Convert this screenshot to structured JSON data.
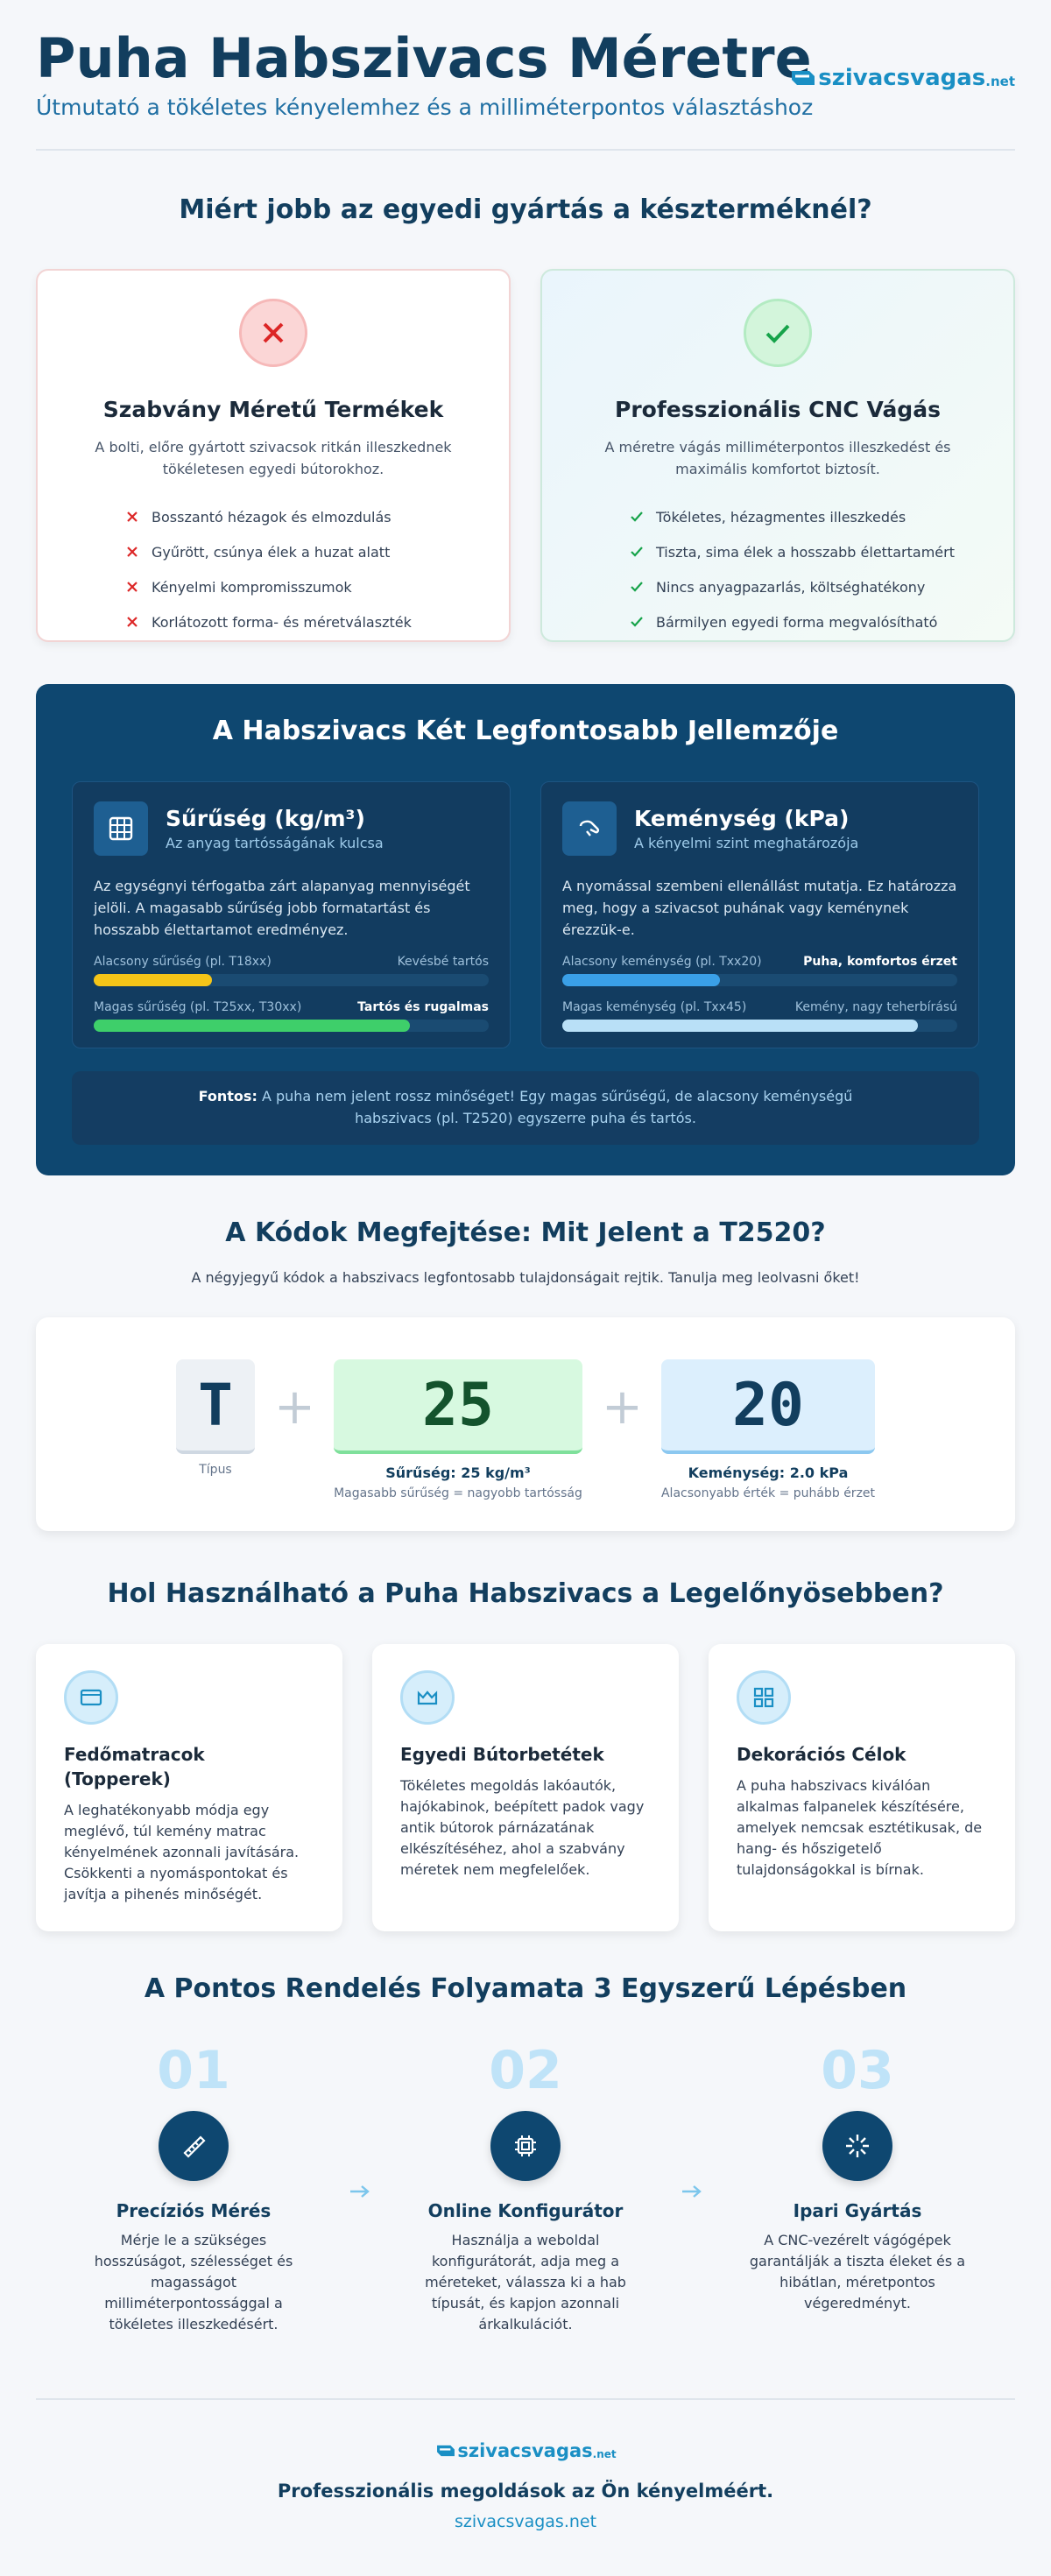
{
  "header": {
    "title": "Puha Habszivacs Méretre",
    "subtitle": "Útmutató a tökéletes kényelemhez és a milliméterpontos választáshoz",
    "logo": {
      "name": "szivacsvagas",
      "tld": ".net"
    }
  },
  "comparison": {
    "heading": "Miért jobb az egyedi gyártás a készterméknél?",
    "cards": [
      {
        "title": "Szabvány Méretű Termékek",
        "description": "A bolti, előre gyártott szivacsok ritkán illeszkednek tökéletesen egyedi bútorokhoz.",
        "items": [
          "Bosszantó hézagok és elmozdulás",
          "Gyűrött, csúnya élek a huzat alatt",
          "Kényelmi kompromisszumok",
          "Korlátozott forma- és méretválaszték"
        ]
      },
      {
        "title": "Professzionális CNC Vágás",
        "description": "A méretre vágás milliméterpontos illeszkedést és maximális komfortot biztosít.",
        "items": [
          "Tökéletes, hézagmentes illeszkedés",
          "Tiszta, sima élek a hosszabb élettartamért",
          "Nincs anyagpazarlás, költséghatékony",
          "Bármilyen egyedi forma megvalósítható"
        ]
      }
    ]
  },
  "features": {
    "heading": "A Habszivacs Két Legfontosabb Jellemzője",
    "cards": [
      {
        "title": "Sűrűség (kg/m³)",
        "subtitle": "Az anyag tartósságának kulcsa",
        "description": "Az egységnyi térfogatba zárt alapanyag mennyiségét jelöli. A magasabb sűrűség jobb formatartást és hosszabb élettartamot eredményez.",
        "bars": [
          {
            "label": "Alacsony sűrűség (pl. T18xx)",
            "result": "Kevésbé tartós"
          },
          {
            "label": "Magas sűrűség (pl. T25xx, T30xx)",
            "result": "Tartós és rugalmas"
          }
        ]
      },
      {
        "title": "Keménység (kPa)",
        "subtitle": "A kényelmi szint meghatározója",
        "description": "A nyomással szembeni ellenállást mutatja. Ez határozza meg, hogy a szivacsot puhának vagy keménynek érezzük-e.",
        "bars": [
          {
            "label": "Alacsony keménység (pl. Txx20)",
            "result": "Puha, komfortos érzet"
          },
          {
            "label": "Magas keménység (pl. Txx45)",
            "result": "Kemény, nagy teherbírású"
          }
        ]
      }
    ],
    "note": {
      "label": "Fontos:",
      "text": "A puha nem jelent rossz minőséget! Egy magas sűrűségű, de alacsony keménységű habszivacs (pl. T2520) egyszerre puha és tartós."
    }
  },
  "codes": {
    "heading": "A Kódok Megfejtése: Mit Jelent a T2520?",
    "subtitle": "A négyjegyű kódok a habszivacs legfontosabb tulajdonságait rejtik. Tanulja meg leolvasni őket!",
    "operator": "+",
    "type": {
      "code": "T",
      "caption": "Típus"
    },
    "density": {
      "code": "25",
      "title": "Sűrűség: 25 kg/m³",
      "caption": "Magasabb sűrűség = nagyobb tartósság"
    },
    "hardness": {
      "code": "20",
      "title": "Keménység: 2.0 kPa",
      "caption": "Alacsonyabb érték = puhább érzet"
    }
  },
  "uses": {
    "heading": "Hol Használható a Puha Habszivacs a Legelőnyösebben?",
    "cards": [
      {
        "title": "Fedőmatracok (Topperek)",
        "text": "A leghatékonyabb módja egy meglévő, túl kemény matrac kényelmének azonnali javítására. Csökkenti a nyomáspontokat és javítja a pihenés minőségét."
      },
      {
        "title": "Egyedi Bútorbetétek",
        "text": "Tökéletes megoldás lakóautók, hajókabinok, beépített padok vagy antik bútorok párnázatának elkészítéséhez, ahol a szabvány méretek nem megfelelőek."
      },
      {
        "title": "Dekorációs Célok",
        "text": "A puha habszivacs kiválóan alkalmas falpanelek készítésére, amelyek nemcsak esztétikusak, de hang- és hőszigetelő tulajdonságokkal is bírnak."
      }
    ]
  },
  "steps": {
    "heading": "A Pontos Rendelés Folyamata 3 Egyszerű Lépésben",
    "items": [
      {
        "number": "01",
        "title": "Precíziós Mérés",
        "text": "Mérje le a szükséges hosszúságot, szélességet és magasságot milliméterpontossággal a tökéletes illeszkedésért."
      },
      {
        "number": "02",
        "title": "Online Konfigurátor",
        "text": "Használja a weboldal konfigurátorát, adja meg a méreteket, válassza ki a hab típusát, és kapjon azonnali árkalkulációt."
      },
      {
        "number": "03",
        "title": "Ipari Gyártás",
        "text": "A CNC-vezérelt vágógépek garantálják a tiszta éleket és a hibátlan, méretpontos végeredményt."
      }
    ]
  },
  "footer": {
    "tagline": "Professzionális megoldások az Ön kényelméért.",
    "url": "szivacsvagas.net"
  }
}
